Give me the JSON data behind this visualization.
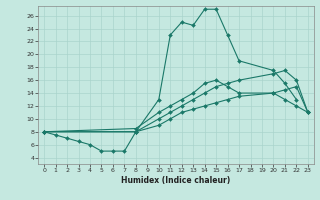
{
  "title": "",
  "xlabel": "Humidex (Indice chaleur)",
  "background_color": "#c5e8e0",
  "line_color": "#1a7868",
  "grid_color": "#aad4cc",
  "xlim": [
    -0.5,
    23.5
  ],
  "ylim": [
    3,
    27.5
  ],
  "xticks": [
    0,
    1,
    2,
    3,
    4,
    5,
    6,
    7,
    8,
    9,
    10,
    11,
    12,
    13,
    14,
    15,
    16,
    17,
    18,
    19,
    20,
    21,
    22,
    23
  ],
  "yticks": [
    4,
    6,
    8,
    10,
    12,
    14,
    16,
    18,
    20,
    22,
    24,
    26
  ],
  "series": [
    {
      "x": [
        0,
        1,
        2,
        3,
        4,
        5,
        6,
        7,
        8,
        10,
        11,
        12,
        13,
        14,
        15,
        16,
        17,
        20,
        21,
        22
      ],
      "y": [
        8,
        7.5,
        7,
        6.5,
        6,
        5,
        5,
        5,
        8,
        13,
        23,
        25,
        24.5,
        27,
        27,
        23,
        19,
        17.5,
        15.5,
        13
      ]
    },
    {
      "x": [
        0,
        8,
        10,
        11,
        12,
        13,
        14,
        15,
        16,
        17,
        20,
        21,
        22,
        23
      ],
      "y": [
        8,
        8,
        10,
        11,
        12,
        13,
        14,
        15,
        15.5,
        16,
        17,
        17.5,
        16,
        11
      ]
    },
    {
      "x": [
        0,
        8,
        10,
        11,
        12,
        13,
        14,
        15,
        16,
        17,
        20,
        21,
        22,
        23
      ],
      "y": [
        8,
        8.5,
        11,
        12,
        13,
        14,
        15.5,
        16,
        15,
        14,
        14,
        13,
        12,
        11
      ]
    },
    {
      "x": [
        0,
        8,
        10,
        11,
        12,
        13,
        14,
        15,
        16,
        17,
        20,
        21,
        22,
        23
      ],
      "y": [
        8,
        8,
        9,
        10,
        11,
        11.5,
        12,
        12.5,
        13,
        13.5,
        14,
        14.5,
        15,
        11
      ]
    }
  ]
}
